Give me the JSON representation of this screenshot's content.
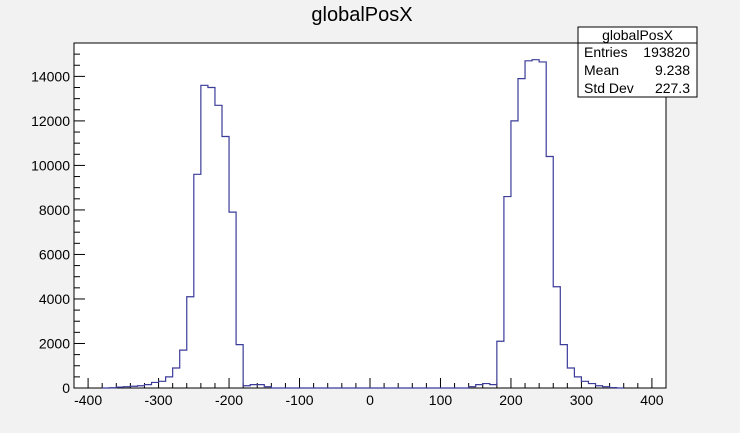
{
  "chart_data": {
    "type": "histogram",
    "title": "globalPosX",
    "xlabel": "",
    "ylabel": "",
    "xlim": [
      -420,
      420
    ],
    "ylim": [
      0,
      15500
    ],
    "x_ticks": [
      -400,
      -300,
      -200,
      -100,
      0,
      100,
      200,
      300,
      400
    ],
    "y_ticks": [
      0,
      2000,
      4000,
      6000,
      8000,
      10000,
      12000,
      14000
    ],
    "grid": false,
    "line_color": "#3b3b9a",
    "bins": [
      {
        "x_low": -380,
        "x_high": -370,
        "count": 0
      },
      {
        "x_low": -370,
        "x_high": -360,
        "count": 10
      },
      {
        "x_low": -360,
        "x_high": -350,
        "count": 40
      },
      {
        "x_low": -350,
        "x_high": -340,
        "count": 60
      },
      {
        "x_low": -340,
        "x_high": -330,
        "count": 80
      },
      {
        "x_low": -330,
        "x_high": -320,
        "count": 100
      },
      {
        "x_low": -320,
        "x_high": -310,
        "count": 150
      },
      {
        "x_low": -310,
        "x_high": -300,
        "count": 250
      },
      {
        "x_low": -300,
        "x_high": -290,
        "count": 300
      },
      {
        "x_low": -290,
        "x_high": -280,
        "count": 500
      },
      {
        "x_low": -280,
        "x_high": -270,
        "count": 900
      },
      {
        "x_low": -270,
        "x_high": -260,
        "count": 1700
      },
      {
        "x_low": -260,
        "x_high": -250,
        "count": 4100
      },
      {
        "x_low": -250,
        "x_high": -240,
        "count": 9600
      },
      {
        "x_low": -240,
        "x_high": -230,
        "count": 13600
      },
      {
        "x_low": -230,
        "x_high": -220,
        "count": 13500
      },
      {
        "x_low": -220,
        "x_high": -210,
        "count": 12700
      },
      {
        "x_low": -210,
        "x_high": -200,
        "count": 11300
      },
      {
        "x_low": -200,
        "x_high": -190,
        "count": 7900
      },
      {
        "x_low": -190,
        "x_high": -180,
        "count": 1950
      },
      {
        "x_low": -180,
        "x_high": -170,
        "count": 100
      },
      {
        "x_low": -170,
        "x_high": -160,
        "count": 150
      },
      {
        "x_low": -160,
        "x_high": -150,
        "count": 150
      },
      {
        "x_low": -150,
        "x_high": -140,
        "count": 60
      },
      {
        "x_low": -140,
        "x_high": 140,
        "count": 0
      },
      {
        "x_low": 140,
        "x_high": 150,
        "count": 60
      },
      {
        "x_low": 150,
        "x_high": 160,
        "count": 150
      },
      {
        "x_low": 160,
        "x_high": 170,
        "count": 200
      },
      {
        "x_low": 170,
        "x_high": 180,
        "count": 150
      },
      {
        "x_low": 180,
        "x_high": 190,
        "count": 2100
      },
      {
        "x_low": 190,
        "x_high": 200,
        "count": 8600
      },
      {
        "x_low": 200,
        "x_high": 210,
        "count": 12000
      },
      {
        "x_low": 210,
        "x_high": 220,
        "count": 13900
      },
      {
        "x_low": 220,
        "x_high": 230,
        "count": 14700
      },
      {
        "x_low": 230,
        "x_high": 240,
        "count": 14750
      },
      {
        "x_low": 240,
        "x_high": 250,
        "count": 14650
      },
      {
        "x_low": 250,
        "x_high": 260,
        "count": 10400
      },
      {
        "x_low": 260,
        "x_high": 270,
        "count": 4550
      },
      {
        "x_low": 270,
        "x_high": 280,
        "count": 1950
      },
      {
        "x_low": 280,
        "x_high": 290,
        "count": 900
      },
      {
        "x_low": 290,
        "x_high": 300,
        "count": 500
      },
      {
        "x_low": 300,
        "x_high": 310,
        "count": 300
      },
      {
        "x_low": 310,
        "x_high": 320,
        "count": 200
      },
      {
        "x_low": 320,
        "x_high": 330,
        "count": 100
      },
      {
        "x_low": 330,
        "x_high": 340,
        "count": 60
      },
      {
        "x_low": 340,
        "x_high": 350,
        "count": 20
      },
      {
        "x_low": 350,
        "x_high": 360,
        "count": 0
      }
    ],
    "stats_box": {
      "title": "globalPosX",
      "rows": [
        {
          "label": "Entries",
          "value": "193820"
        },
        {
          "label": "Mean",
          "value": "9.238"
        },
        {
          "label": "Std Dev",
          "value": "227.3"
        }
      ],
      "placement": "top-right"
    }
  }
}
